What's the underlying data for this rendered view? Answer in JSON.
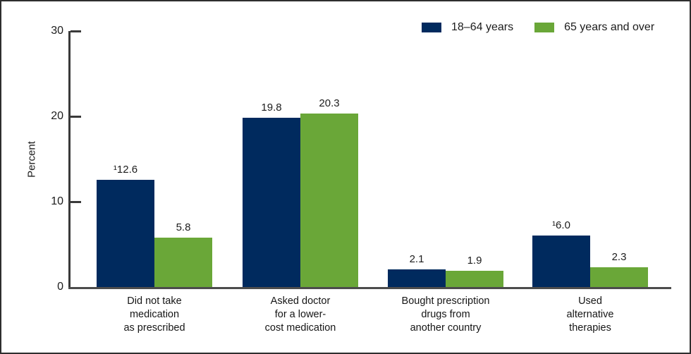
{
  "chart_data": {
    "type": "bar",
    "title": "",
    "xlabel": "",
    "ylabel": "Percent",
    "ylim": [
      0,
      30
    ],
    "yticks": [
      0,
      10,
      20,
      30
    ],
    "grid": false,
    "legend_position": "top-right",
    "categories": [
      "Did not take\nmedication\nas prescribed",
      "Asked doctor\nfor a lower-\ncost medication",
      "Bought prescription\ndrugs from\nanother country",
      "Used\nalternative\ntherapies"
    ],
    "series": [
      {
        "name": "18–64 years",
        "color": "#002a5e",
        "values": [
          12.6,
          19.8,
          2.1,
          6.0
        ],
        "value_labels": [
          "¹12.6",
          "19.8",
          "2.1",
          "¹6.0"
        ]
      },
      {
        "name": "65 years and over",
        "color": "#6aa738",
        "values": [
          5.8,
          20.3,
          1.9,
          2.3
        ],
        "value_labels": [
          "5.8",
          "20.3",
          "1.9",
          "2.3"
        ]
      }
    ],
    "axis_color": "#3a3a3a",
    "baseline_color": "#4c4c4c"
  }
}
